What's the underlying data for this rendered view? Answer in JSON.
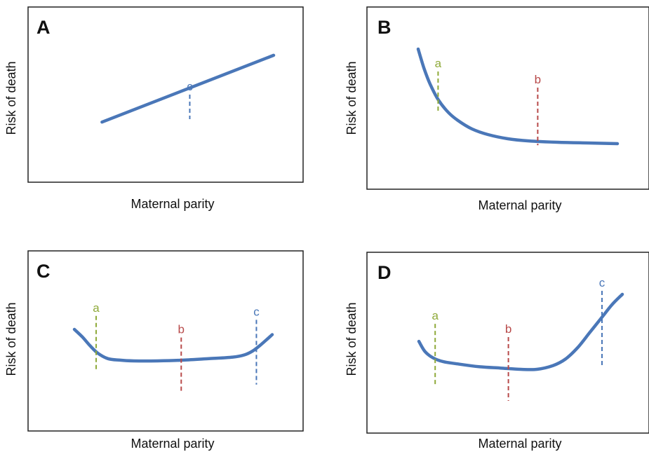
{
  "colors": {
    "curve": "#4a77b8",
    "frame": "#222222",
    "a": "#8faa3a",
    "b": "#b84a4a",
    "c": "#4a77b8"
  },
  "panels": [
    {
      "letter": "A",
      "xlabel": "Maternal parity",
      "ylabel": "Risk of death",
      "chart_data": {
        "type": "line",
        "curve": [
          [
            0.12,
            0.22
          ],
          [
            1.0,
            0.86
          ]
        ],
        "markers": [
          {
            "label": "c",
            "color": "c",
            "x": 0.57,
            "top": 0.6,
            "bottom": 0.25
          }
        ]
      }
    },
    {
      "letter": "B",
      "xlabel": "Maternal parity",
      "ylabel": "Risk of death",
      "chart_data": {
        "type": "line",
        "curve": [
          [
            0.0,
            0.8
          ],
          [
            0.03,
            0.66
          ],
          [
            0.06,
            0.55
          ],
          [
            0.1,
            0.44
          ],
          [
            0.15,
            0.35
          ],
          [
            0.2,
            0.29
          ],
          [
            0.27,
            0.23
          ],
          [
            0.35,
            0.19
          ],
          [
            0.45,
            0.16
          ],
          [
            0.55,
            0.145
          ],
          [
            0.7,
            0.135
          ],
          [
            0.85,
            0.13
          ],
          [
            1.0,
            0.125
          ]
        ],
        "markers": [
          {
            "label": "a",
            "color": "a",
            "x": 0.1,
            "top": 0.8,
            "bottom": 0.36
          },
          {
            "label": "b",
            "color": "b",
            "x": 0.6,
            "top": 0.63,
            "bottom": 0.02
          }
        ]
      }
    },
    {
      "letter": "C",
      "xlabel": "Maternal parity",
      "ylabel": "Risk of death",
      "chart_data": {
        "type": "line",
        "curve": [
          [
            0.0,
            0.62
          ],
          [
            0.04,
            0.52
          ],
          [
            0.08,
            0.4
          ],
          [
            0.12,
            0.3
          ],
          [
            0.17,
            0.23
          ],
          [
            0.23,
            0.21
          ],
          [
            0.3,
            0.2
          ],
          [
            0.42,
            0.2
          ],
          [
            0.55,
            0.21
          ],
          [
            0.68,
            0.23
          ],
          [
            0.8,
            0.25
          ],
          [
            0.86,
            0.28
          ],
          [
            0.9,
            0.33
          ],
          [
            0.94,
            0.41
          ],
          [
            1.0,
            0.55
          ]
        ],
        "markers": [
          {
            "label": "a",
            "color": "a",
            "x": 0.11,
            "top": 0.78,
            "bottom": 0.22
          },
          {
            "label": "b",
            "color": "b",
            "x": 0.54,
            "top": 0.56,
            "bottom": 0.0
          },
          {
            "label": "c",
            "color": "c",
            "x": 0.92,
            "top": 0.74,
            "bottom": 0.08
          }
        ]
      }
    },
    {
      "letter": "D",
      "xlabel": "Maternal parity",
      "ylabel": "Risk of death",
      "chart_data": {
        "type": "line",
        "curve": [
          [
            0.0,
            0.43
          ],
          [
            0.03,
            0.35
          ],
          [
            0.07,
            0.3
          ],
          [
            0.12,
            0.27
          ],
          [
            0.2,
            0.25
          ],
          [
            0.3,
            0.23
          ],
          [
            0.4,
            0.22
          ],
          [
            0.5,
            0.21
          ],
          [
            0.58,
            0.21
          ],
          [
            0.66,
            0.24
          ],
          [
            0.72,
            0.29
          ],
          [
            0.78,
            0.38
          ],
          [
            0.84,
            0.5
          ],
          [
            0.9,
            0.62
          ],
          [
            0.95,
            0.72
          ],
          [
            1.0,
            0.8
          ]
        ],
        "markers": [
          {
            "label": "a",
            "color": "a",
            "x": 0.08,
            "top": 0.7,
            "bottom": 0.13
          },
          {
            "label": "b",
            "color": "b",
            "x": 0.44,
            "top": 0.58,
            "bottom": 0.0
          },
          {
            "label": "c",
            "color": "c",
            "x": 0.9,
            "top": 1.0,
            "bottom": 0.31
          }
        ]
      }
    }
  ]
}
